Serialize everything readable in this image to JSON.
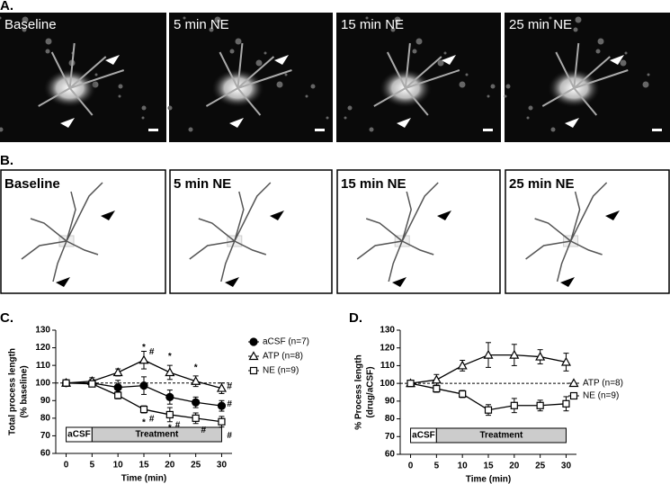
{
  "panel_a": {
    "label": "A.",
    "frames": [
      "Baseline",
      "5 min NE",
      "15 min NE",
      "25 min NE"
    ]
  },
  "panel_b": {
    "label": "B.",
    "frames": [
      "Baseline",
      "5 min NE",
      "15 min NE",
      "25 min NE"
    ]
  },
  "chart_data": [
    {
      "type": "line",
      "label": "C.",
      "xlabel": "Time (min)",
      "ylabel": [
        "Total process length",
        "(% baseline)"
      ],
      "x": [
        0,
        5,
        10,
        15,
        20,
        25,
        30
      ],
      "xlim": [
        -2,
        32
      ],
      "xticks": [
        0,
        5,
        10,
        15,
        20,
        25,
        30
      ],
      "ylim": [
        60,
        130
      ],
      "yticks": [
        60,
        70,
        80,
        90,
        100,
        110,
        120,
        130
      ],
      "refline": 100,
      "series": [
        {
          "name": "aCSF (n=7)",
          "color": "#000000",
          "marker": "circle",
          "filled": true,
          "values": [
            100,
            100,
            97.5,
            98.5,
            92,
            89,
            87
          ],
          "errors": [
            1,
            2,
            4,
            5,
            4,
            3,
            3
          ]
        },
        {
          "name": "ATP (n=8)",
          "color": "#000000",
          "marker": "triangle",
          "filled": false,
          "values": [
            100,
            101,
            106,
            113,
            106,
            101,
            97
          ],
          "errors": [
            1,
            2,
            2,
            5,
            4,
            3,
            3
          ]
        },
        {
          "name": "NE (n=9)",
          "color": "#000000",
          "marker": "square",
          "filled": false,
          "values": [
            100,
            99.5,
            93,
            85,
            82,
            80,
            78
          ],
          "errors": [
            1,
            1,
            2,
            2,
            4,
            3,
            3
          ]
        }
      ],
      "periods": [
        {
          "label": "aCSF",
          "start": 0,
          "end": 5,
          "color": "#ffffff"
        },
        {
          "label": "Treatment",
          "start": 5,
          "end": 30,
          "color": "#cccccc"
        }
      ],
      "annotations": [
        {
          "text": "*",
          "x": 15,
          "y": 120
        },
        {
          "text": "#",
          "x": 16.5,
          "y": 117.5
        },
        {
          "text": "*",
          "x": 20,
          "y": 115
        },
        {
          "text": "*",
          "x": 25,
          "y": 108.5
        },
        {
          "text": "*",
          "x": 15,
          "y": 77.5
        },
        {
          "text": "#",
          "x": 16.5,
          "y": 79.5
        },
        {
          "text": "*",
          "x": 20,
          "y": 74.5
        },
        {
          "text": "#",
          "x": 21.5,
          "y": 76
        },
        {
          "text": "#",
          "x": 26.5,
          "y": 73
        },
        {
          "text": "#",
          "x": 31.5,
          "y": 88
        },
        {
          "text": "#",
          "x": 31.5,
          "y": 70
        },
        {
          "text": "#",
          "x": 31.5,
          "y": 98
        }
      ]
    },
    {
      "type": "line",
      "label": "D.",
      "xlabel": "Time (min)",
      "ylabel": [
        "% Process length",
        "(drug/aCSF)"
      ],
      "x": [
        0,
        5,
        10,
        15,
        20,
        25,
        30
      ],
      "xlim": [
        -2,
        32
      ],
      "xticks": [
        0,
        5,
        10,
        15,
        20,
        25,
        30
      ],
      "ylim": [
        60,
        130
      ],
      "yticks": [
        60,
        70,
        80,
        90,
        100,
        110,
        120,
        130
      ],
      "refline": 100,
      "series": [
        {
          "name": "ATP (n=8)",
          "color": "#000000",
          "marker": "triangle",
          "filled": false,
          "values": [
            100,
            102,
            110,
            116,
            116,
            115,
            112
          ],
          "errors": [
            1,
            3,
            3,
            7,
            6,
            4,
            5
          ]
        },
        {
          "name": "NE (n=9)",
          "color": "#000000",
          "marker": "square",
          "filled": false,
          "values": [
            100,
            97,
            94,
            85,
            87.5,
            87.5,
            88.5
          ],
          "errors": [
            1,
            2,
            2,
            3,
            4,
            3,
            4
          ]
        }
      ],
      "periods": [
        {
          "label": "aCSF",
          "start": 0,
          "end": 5,
          "color": "#ffffff"
        },
        {
          "label": "Treatment",
          "start": 5,
          "end": 30,
          "color": "#cccccc"
        }
      ],
      "annotations": []
    }
  ]
}
